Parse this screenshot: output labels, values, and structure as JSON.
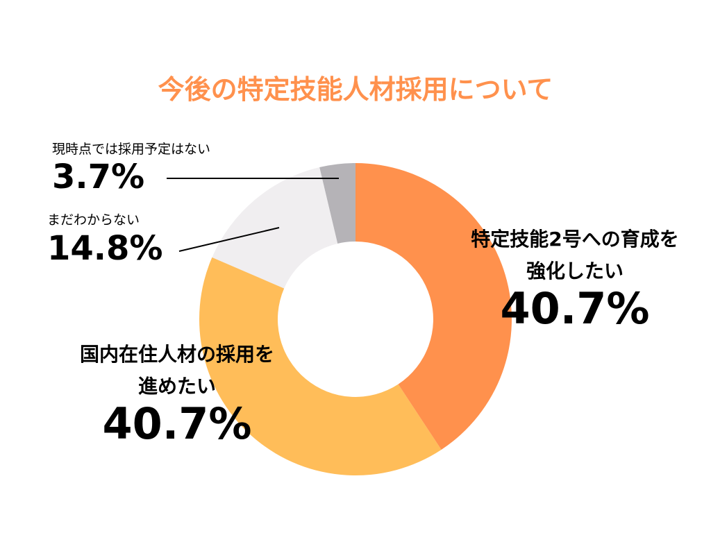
{
  "chart_data": {
    "type": "pie",
    "title": "今後の特定技能人材採用について",
    "categories": [
      "特定技能2号への育成を\n強化したい",
      "国内在住人材の採用を\n進めたい",
      "まだわからない",
      "現時点では採用予定はない"
    ],
    "values": [
      40.7,
      40.7,
      14.8,
      3.7
    ],
    "value_labels": [
      "40.7%",
      "40.7%",
      "14.8%",
      "3.7%"
    ],
    "colors": [
      "#ff914d",
      "#ffbd59",
      "#f0eef0",
      "#b5b3b7"
    ]
  }
}
